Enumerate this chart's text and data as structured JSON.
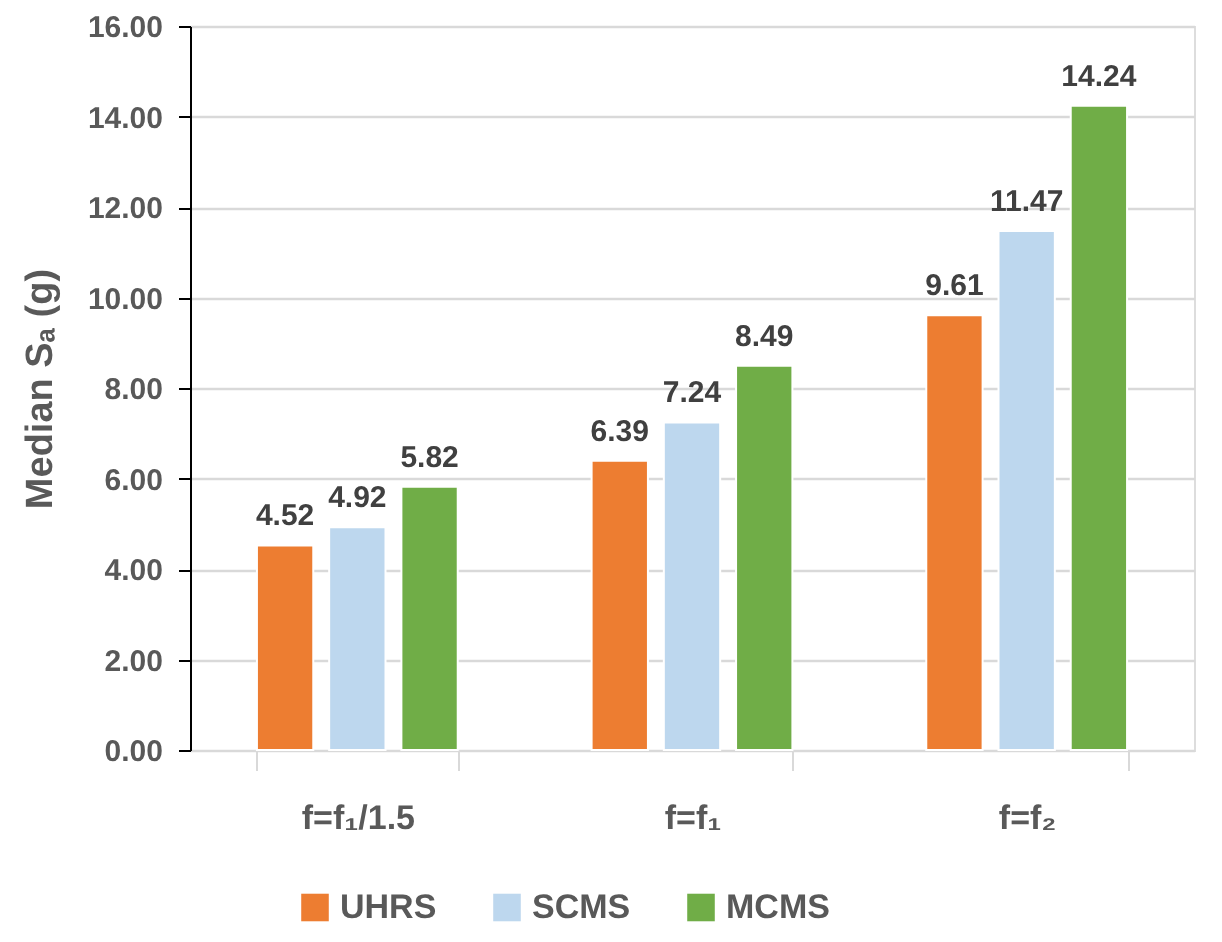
{
  "chart_data": {
    "type": "bar",
    "ylabel": "Median Sₐ (g)",
    "categories": [
      "f=f₁/1.5",
      "f=f₁",
      "f=f₂"
    ],
    "series": [
      {
        "name": "UHRS",
        "color": "#ed7d31",
        "values": [
          4.52,
          6.39,
          9.61
        ]
      },
      {
        "name": "SCMS",
        "color": "#bdd7ee",
        "values": [
          4.92,
          7.24,
          11.47
        ]
      },
      {
        "name": "MCMS",
        "color": "#70ad47",
        "values": [
          5.82,
          8.49,
          14.24
        ]
      }
    ],
    "ylim": [
      0,
      16
    ],
    "yticks": [
      {
        "value": 0,
        "label": "0.00"
      },
      {
        "value": 2,
        "label": "2.00"
      },
      {
        "value": 4,
        "label": "4.00"
      },
      {
        "value": 6,
        "label": "6.00"
      },
      {
        "value": 8,
        "label": "8.00"
      },
      {
        "value": 10,
        "label": "10.00"
      },
      {
        "value": 12,
        "label": "12.00"
      },
      {
        "value": 14,
        "label": "14.00"
      },
      {
        "value": 16,
        "label": "16.00"
      }
    ],
    "grid": "y",
    "legend": "bottom",
    "data_labels": true
  }
}
